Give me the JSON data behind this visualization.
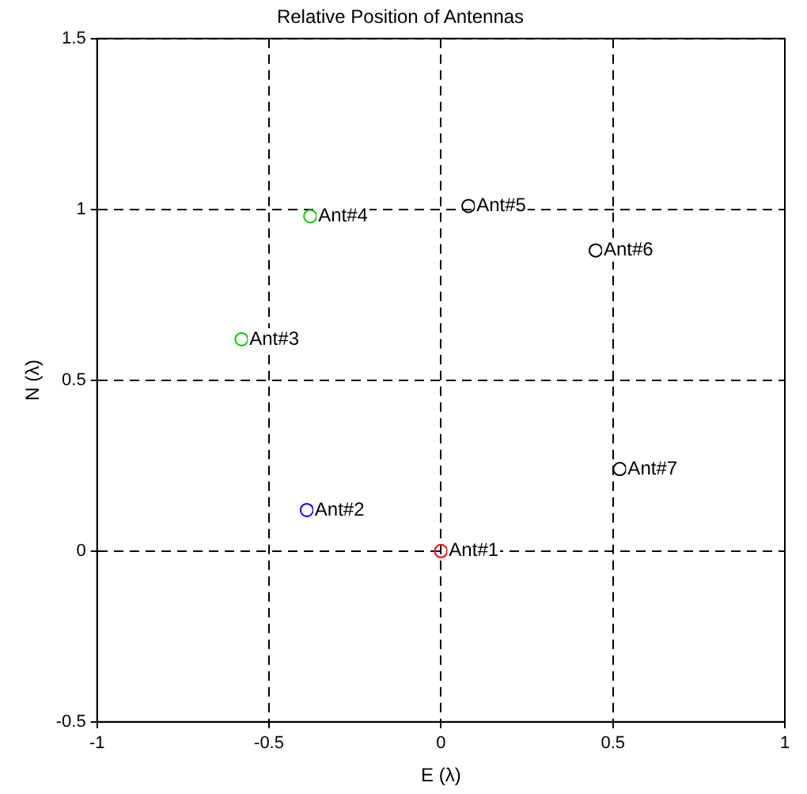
{
  "chart_data": {
    "type": "scatter",
    "title": "Relative Position of Antennas",
    "xlabel": "E (λ)",
    "ylabel": "N (λ)",
    "x": [
      0,
      -0.39,
      -0.58,
      -0.38,
      0.08,
      0.45,
      0.52
    ],
    "values": [
      0,
      0.12,
      0.62,
      0.98,
      1.01,
      0.88,
      0.24
    ],
    "colors": [
      "#ff0000",
      "#0000ff",
      "#00cc00",
      "#00cc00",
      "#000000",
      "#000000",
      "#000000"
    ],
    "marker": "circle",
    "line_style": "dashed",
    "xlim": [
      -1,
      1
    ],
    "xticks": [
      -1,
      -0.5,
      0,
      0.5,
      1
    ],
    "ylim": [
      -0.5,
      1.5
    ],
    "yticks": [
      -0.5,
      0,
      0.5,
      1,
      1.5
    ],
    "grid": true,
    "legend": false,
    "annotations": [
      {
        "text": "Ant#1",
        "x": 0,
        "y": 0
      },
      {
        "text": "Ant#2",
        "x": -0.39,
        "y": 0.12
      },
      {
        "text": "Ant#3",
        "x": -0.58,
        "y": 0.62
      },
      {
        "text": "Ant#4",
        "x": -0.38,
        "y": 0.98
      },
      {
        "text": "Ant#5",
        "x": 0.08,
        "y": 1.01
      },
      {
        "text": "Ant#6",
        "x": 0.45,
        "y": 0.88
      },
      {
        "text": "Ant#7",
        "x": 0.52,
        "y": 0.24
      }
    ]
  }
}
